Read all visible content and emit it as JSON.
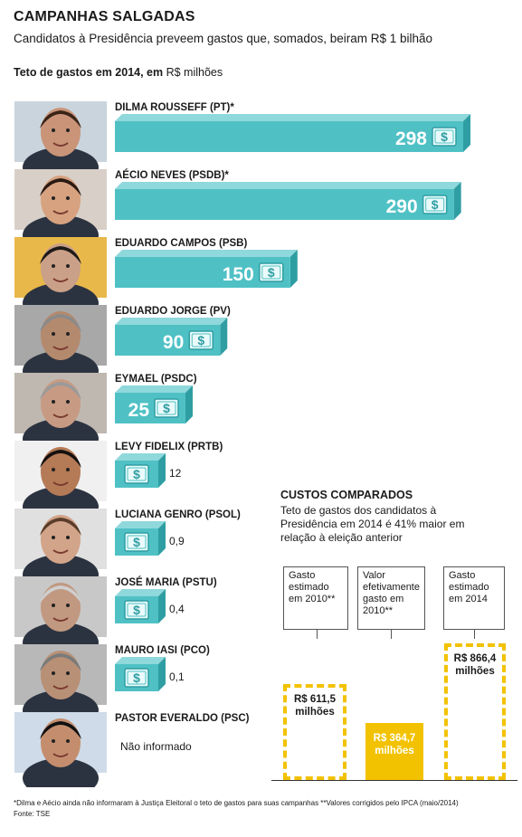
{
  "header": {
    "title": "CAMPANHAS SALGADAS",
    "subtitle": "Candidatos à Presidência preveem gastos que, somados, beiram R$ 1 bilhão",
    "unit_label": "Teto de gastos em 2014, em",
    "unit": "R$ milhões"
  },
  "colors": {
    "bar": "#4fc1c5",
    "bar_top": "#8fd8db",
    "bar_side": "#2f9ea3",
    "highlight": "#f2c200"
  },
  "chart_data": [
    {
      "type": "bar",
      "orientation": "horizontal",
      "title": "Teto de gastos em 2014, em R$ milhões",
      "categories": [
        "DILMA ROUSSEFF (PT)*",
        "AÉCIO NEVES (PSDB)*",
        "EDUARDO CAMPOS (PSB)",
        "EDUARDO JORGE (PV)",
        "EYMAEL (PSDC)",
        "LEVY FIDELIX (PRTB)",
        "LUCIANA GENRO (PSOL)",
        "JOSÉ MARIA (PSTU)",
        "MAURO IASI (PCO)",
        "PASTOR EVERALDO (PSC)"
      ],
      "values": [
        298,
        290,
        150,
        90,
        25,
        12,
        0.9,
        0.4,
        0.1,
        null
      ],
      "value_labels": [
        "298",
        "290",
        "150",
        "90",
        "25",
        "12",
        "0,9",
        "0,4",
        "0,1",
        "Não informado"
      ],
      "icon": "money-bill-icon"
    },
    {
      "type": "bar",
      "title": "CUSTOS COMPARADOS",
      "categories": [
        "Gasto estimado em 2010**",
        "Valor efetivamente gasto em 2010**",
        "Gasto estimado em 2014"
      ],
      "values": [
        611.5,
        364.7,
        866.4
      ],
      "value_labels": [
        "R$ 611,5 milhões",
        "R$ 364,7 milhões",
        "R$ 866,4 milhões"
      ]
    }
  ],
  "comparison": {
    "title": "CUSTOS COMPARADOS",
    "text": "Teto de gastos dos candidatos à Presidência em 2014 é 41% maior em relação à eleição anterior",
    "labels": [
      "Gasto estimado em 2010**",
      "Valor efetivamente gasto em 2010**",
      "Gasto estimado em 2014"
    ]
  },
  "footnote": {
    "notes": "*Dilma e Aécio ainda não informaram à Justiça Eleitoral o teto de gastos para suas campanhas   **Valores corrigidos pelo IPCA (maio/2014)",
    "source": "Fonte: TSE"
  }
}
